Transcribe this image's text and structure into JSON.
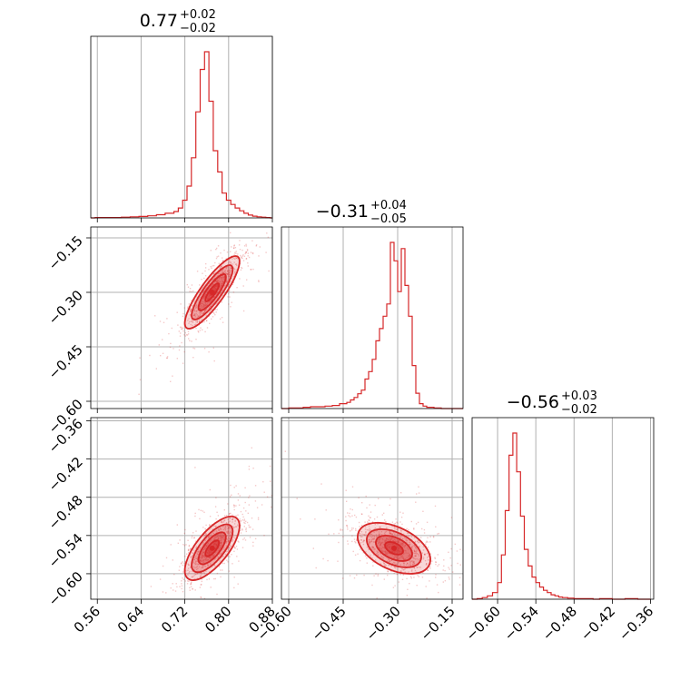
{
  "chart_data": {
    "type": "scatter",
    "subtype": "corner-plot",
    "color": "#d62728",
    "grid": true,
    "parameters": [
      {
        "median": 0.77,
        "title_main": "0.77",
        "title_sup": "+0.02",
        "title_sub": "−0.02",
        "range": [
          0.548,
          0.88
        ]
      },
      {
        "median": -0.31,
        "title_main": "−0.31",
        "title_sup": "+0.04",
        "title_sub": "−0.05",
        "range": [
          -0.62,
          -0.12
        ]
      },
      {
        "median": -0.56,
        "title_main": "−0.56",
        "title_sup": "+0.03",
        "title_sub": "−0.02",
        "range": [
          -0.64,
          -0.355
        ]
      }
    ],
    "ticks": [
      {
        "values": [
          0.56,
          0.64,
          0.72,
          0.8,
          0.88
        ],
        "labels": [
          "0.56",
          "0.64",
          "0.72",
          "0.80",
          "0.88"
        ]
      },
      {
        "values": [
          -0.6,
          -0.45,
          -0.3,
          -0.15
        ],
        "labels": [
          "−0.60",
          "−0.45",
          "−0.30",
          "−0.15"
        ]
      },
      {
        "values": [
          -0.6,
          -0.54,
          -0.48,
          -0.42,
          -0.36
        ],
        "labels": [
          "−0.60",
          "−0.54",
          "−0.48",
          "−0.42",
          "−0.36"
        ]
      }
    ],
    "histograms": [
      {
        "bins": [
          0.54,
          0.556,
          0.572,
          0.588,
          0.604,
          0.62,
          0.636,
          0.652,
          0.668,
          0.684,
          0.7,
          0.708,
          0.716,
          0.724,
          0.732,
          0.74,
          0.748,
          0.756,
          0.764,
          0.772,
          0.78,
          0.788,
          0.796,
          0.804,
          0.812,
          0.82,
          0.828,
          0.836,
          0.844,
          0.852,
          0.86,
          0.868,
          0.876,
          0.884
        ],
        "counts": [
          0,
          1,
          1,
          1,
          2,
          3,
          4,
          6,
          9,
          13,
          18,
          28,
          50,
          90,
          170,
          300,
          420,
          470,
          330,
          190,
          130,
          70,
          50,
          38,
          28,
          20,
          13,
          8,
          5,
          3,
          2,
          1,
          0
        ]
      },
      {
        "bins": [
          -0.62,
          -0.6,
          -0.58,
          -0.56,
          -0.54,
          -0.52,
          -0.5,
          -0.48,
          -0.46,
          -0.44,
          -0.43,
          -0.42,
          -0.41,
          -0.4,
          -0.39,
          -0.38,
          -0.37,
          -0.36,
          -0.35,
          -0.34,
          -0.33,
          -0.32,
          -0.31,
          -0.3,
          -0.29,
          -0.28,
          -0.27,
          -0.26,
          -0.25,
          -0.24,
          -0.23,
          -0.22,
          -0.2,
          -0.18,
          -0.16,
          -0.14,
          -0.12
        ],
        "counts": [
          0,
          1,
          1,
          2,
          3,
          3,
          4,
          5,
          8,
          10,
          14,
          18,
          24,
          30,
          48,
          60,
          80,
          110,
          130,
          150,
          170,
          270,
          240,
          190,
          260,
          200,
          150,
          70,
          25,
          8,
          4,
          2,
          1,
          0,
          0,
          0
        ]
      },
      {
        "bins": [
          -0.64,
          -0.632,
          -0.624,
          -0.616,
          -0.608,
          -0.6,
          -0.594,
          -0.588,
          -0.582,
          -0.576,
          -0.57,
          -0.564,
          -0.558,
          -0.552,
          -0.546,
          -0.54,
          -0.534,
          -0.528,
          -0.522,
          -0.516,
          -0.51,
          -0.504,
          -0.498,
          -0.49,
          -0.48,
          -0.47,
          -0.46,
          -0.45,
          -0.44,
          -0.42,
          -0.4,
          -0.38,
          -0.36
        ],
        "counts": [
          0,
          1,
          3,
          6,
          12,
          30,
          80,
          160,
          260,
          300,
          230,
          150,
          90,
          60,
          40,
          30,
          22,
          16,
          12,
          8,
          6,
          4,
          3,
          2,
          1,
          1,
          1,
          0,
          1,
          0,
          1,
          0
        ]
      }
    ],
    "joint": [
      {
        "x_param": 0,
        "y_param": 1,
        "mean": [
          0.77,
          -0.3
        ],
        "sd": [
          0.025,
          0.05
        ],
        "rho": 0.85
      },
      {
        "x_param": 0,
        "y_param": 2,
        "mean": [
          0.77,
          -0.56
        ],
        "sd": [
          0.025,
          0.025
        ],
        "rho": 0.7
      },
      {
        "x_param": 1,
        "y_param": 2,
        "mean": [
          -0.31,
          -0.56
        ],
        "sd": [
          0.05,
          0.02
        ],
        "rho": -0.45
      }
    ]
  }
}
